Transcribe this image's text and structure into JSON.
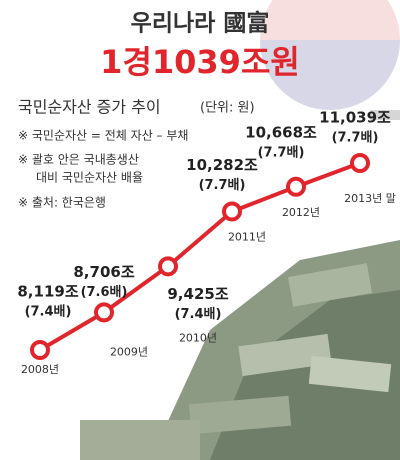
{
  "title": "우리나라 國富",
  "subtitle": "1경1039조원",
  "chart_data": {
    "type": "line",
    "title": "국민순자산 증가 추이",
    "unit_note": "(단위: 원)",
    "notes": [
      "※ 국민순자산 = 전체 자산 – 부채",
      "※ 괄호 안은 국내총생산",
      "대비 국민순자산 배율",
      "※ 출처: 한국은행"
    ],
    "categories": [
      "2008년",
      "2009년",
      "2010년",
      "2011년",
      "2012년",
      "2013년 말"
    ],
    "series": [
      {
        "name": "국민순자산",
        "color": "#e0262c",
        "values": [
          8119,
          8706,
          9425,
          10282,
          10668,
          11039
        ],
        "value_labels": [
          "8,119조",
          "8,706조",
          "9,425조",
          "10,282조",
          "10,668조",
          "11,039조"
        ],
        "ratio_labels": [
          "(7.4배)",
          "(7.6배)",
          "(7.4배)",
          "(7.7배)",
          "(7.7배)",
          "(7.7배)"
        ]
      }
    ]
  }
}
